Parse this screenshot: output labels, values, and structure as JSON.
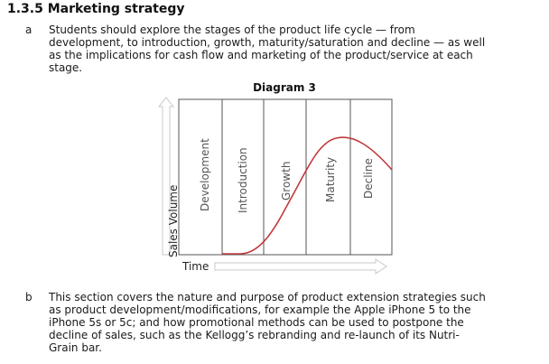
{
  "heading": "1.3.5 Marketing strategy",
  "items": [
    {
      "letter": "a",
      "lines": [
        "Students should explore the stages of the product life cycle — from",
        "development, to introduction, growth, maturity/saturation and decline — as well",
        "as the implications for cash flow and marketing of the product/service at each",
        "stage."
      ]
    },
    {
      "letter": "b",
      "lines": [
        "This section covers the nature and purpose of product extension strategies such",
        "as product development/modifications, for example the Apple iPhone 5 to the",
        "iPhone 5s or 5c; and how promotional methods can be used to postpone the",
        "decline of sales, such as the Kellogg’s rebranding and re-launch of its Nutri-",
        "Grain bar."
      ]
    }
  ],
  "diagram": {
    "title": "Diagram 3",
    "y_axis_label": "Sales Volume",
    "x_axis_label": "Time",
    "stages": [
      "Development",
      "Introduction",
      "Growth",
      "Maturity",
      "Decline"
    ],
    "colors": {
      "curve": "#c0393b",
      "axis": "#cfcfcf",
      "frame": "#555555"
    }
  }
}
